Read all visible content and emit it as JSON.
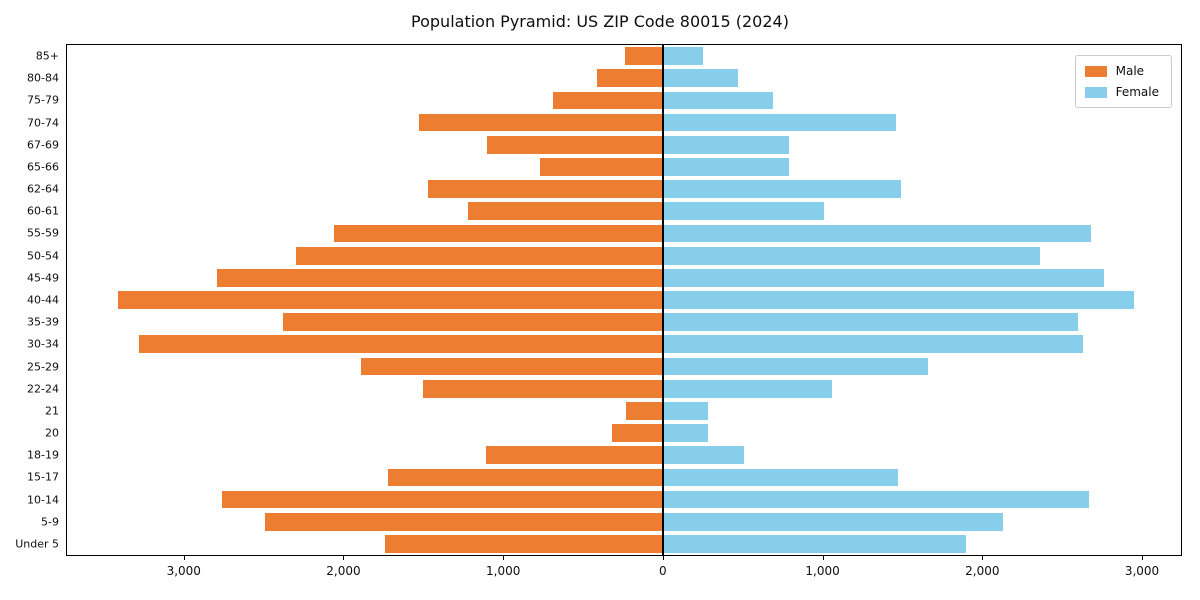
{
  "chart_data": {
    "type": "bar",
    "variant": "population-pyramid",
    "orientation": "horizontal",
    "title": "Population Pyramid: US ZIP Code 80015 (2024)",
    "category_order": "top-to-bottom",
    "categories": [
      "85+",
      "80-84",
      "75-79",
      "70-74",
      "67-69",
      "65-66",
      "62-64",
      "60-61",
      "55-59",
      "50-54",
      "45-49",
      "40-44",
      "35-39",
      "30-34",
      "25-29",
      "22-24",
      "21",
      "20",
      "18-19",
      "15-17",
      "10-14",
      "5-9",
      "Under 5"
    ],
    "series": [
      {
        "name": "Male",
        "side": "left",
        "values": [
          240,
          410,
          690,
          1530,
          1100,
          770,
          1470,
          1220,
          2060,
          2300,
          2790,
          3410,
          2380,
          3280,
          1890,
          1500,
          230,
          320,
          1110,
          1720,
          2760,
          2490,
          1740
        ]
      },
      {
        "name": "Female",
        "side": "right",
        "values": [
          250,
          470,
          690,
          1460,
          790,
          790,
          1490,
          1010,
          2680,
          2360,
          2760,
          2950,
          2600,
          2630,
          1660,
          1060,
          280,
          280,
          510,
          1470,
          2670,
          2130,
          1900
        ]
      }
    ],
    "xlim": [
      -3731,
      3244
    ],
    "xticks": [
      {
        "value": -3000,
        "label": "3,000"
      },
      {
        "value": -2000,
        "label": "2,000"
      },
      {
        "value": -1000,
        "label": "1,000"
      },
      {
        "value": 0,
        "label": "0"
      },
      {
        "value": 1000,
        "label": "1,000"
      },
      {
        "value": 2000,
        "label": "2,000"
      },
      {
        "value": 3000,
        "label": "3,000"
      }
    ],
    "colors": {
      "male": "#ED7D31",
      "female": "#87CEEB"
    },
    "legend_position": "upper right",
    "grid": false
  }
}
